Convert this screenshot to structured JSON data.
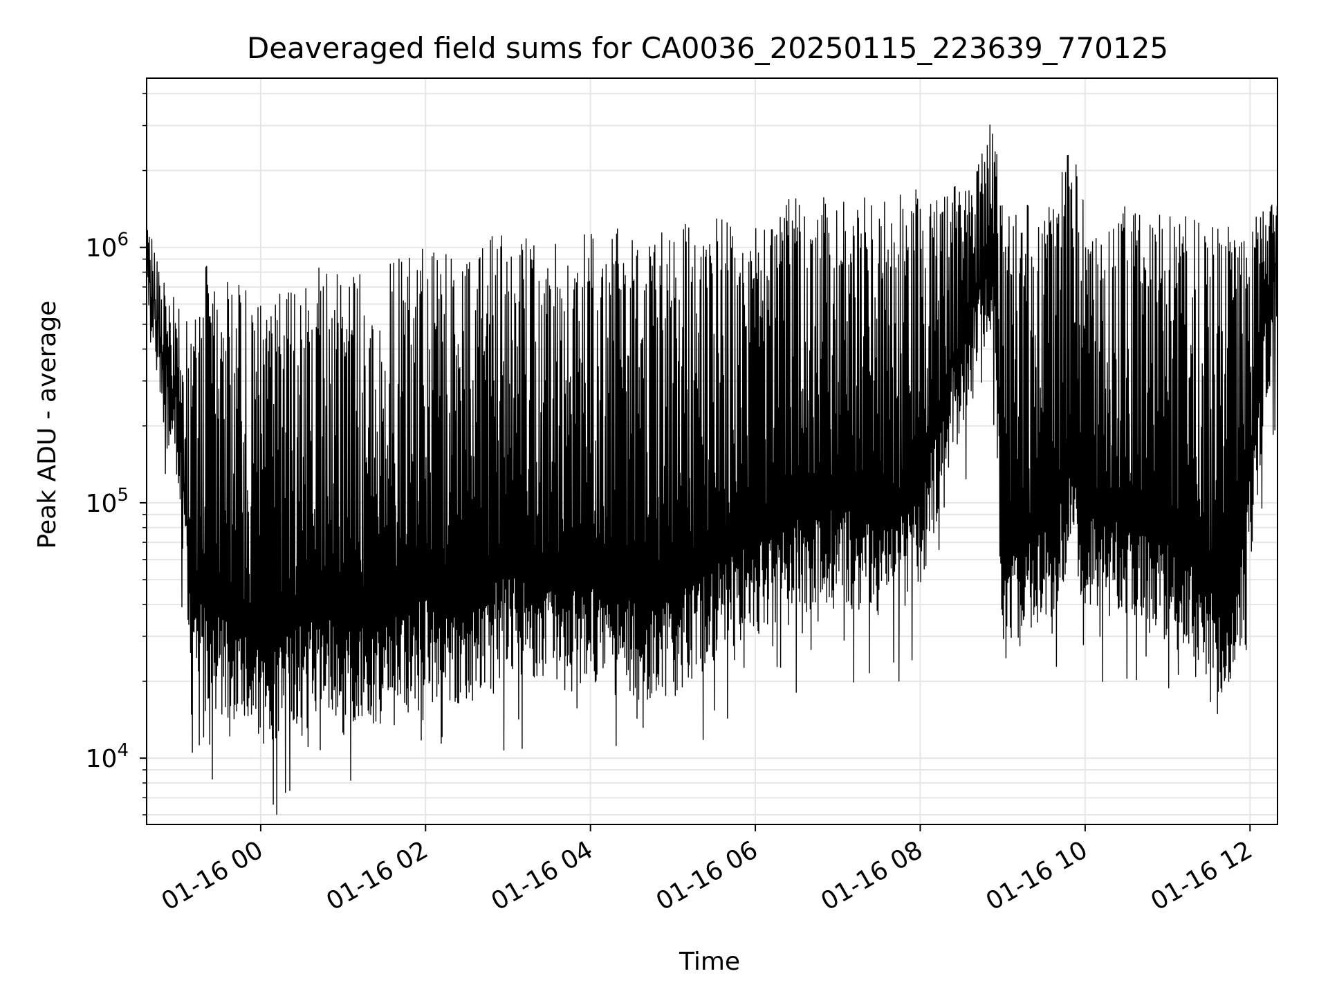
{
  "chart_data": {
    "type": "line",
    "title": "Deaveraged field sums for CA0036_20250115_223639_770125",
    "xlabel": "Time",
    "ylabel": "Peak ADU - average",
    "xlim": [
      "2025-01-15 22:37",
      "2025-01-16 12:20"
    ],
    "ylim": [
      5500,
      4600000
    ],
    "yscale": "log",
    "grid": true,
    "legend": "none",
    "x_ticks": [
      "01-16 00",
      "01-16 02",
      "01-16 04",
      "01-16 06",
      "01-16 08",
      "01-16 10",
      "01-16 12"
    ],
    "x_tick_times": [
      "2025-01-16 00:00",
      "2025-01-16 02:00",
      "2025-01-16 04:00",
      "2025-01-16 06:00",
      "2025-01-16 08:00",
      "2025-01-16 10:00",
      "2025-01-16 12:00"
    ],
    "y_ticks": [
      {
        "value": 10000,
        "base": "10",
        "exp": "4"
      },
      {
        "value": 100000,
        "base": "10",
        "exp": "5"
      },
      {
        "value": 1000000,
        "base": "10",
        "exp": "6"
      }
    ],
    "colors": {
      "line": "#000000",
      "grid": "#e6e6e6",
      "axes": "#000000"
    },
    "series": [
      {
        "x": [
          "2025-01-15 22:37",
          "2025-01-15 22:45",
          "2025-01-15 23:00",
          "2025-01-15 23:10",
          "2025-01-15 23:20",
          "2025-01-15 23:40",
          "2025-01-16 00:00",
          "2025-01-16 00:20",
          "2025-01-16 00:40",
          "2025-01-16 01:00",
          "2025-01-16 01:20",
          "2025-01-16 01:40",
          "2025-01-16 02:00",
          "2025-01-16 02:20",
          "2025-01-16 02:40",
          "2025-01-16 03:00",
          "2025-01-16 03:20",
          "2025-01-16 03:40",
          "2025-01-16 04:00",
          "2025-01-16 04:20",
          "2025-01-16 04:40",
          "2025-01-16 05:00",
          "2025-01-16 05:20",
          "2025-01-16 05:40",
          "2025-01-16 06:00",
          "2025-01-16 06:20",
          "2025-01-16 06:40",
          "2025-01-16 07:00",
          "2025-01-16 07:20",
          "2025-01-16 07:40",
          "2025-01-16 08:00",
          "2025-01-16 08:20",
          "2025-01-16 08:40",
          "2025-01-16 08:53",
          "2025-01-16 09:00",
          "2025-01-16 09:20",
          "2025-01-16 09:40",
          "2025-01-16 09:50",
          "2025-01-16 10:00",
          "2025-01-16 10:20",
          "2025-01-16 10:40",
          "2025-01-16 11:00",
          "2025-01-16 11:20",
          "2025-01-16 11:40",
          "2025-01-16 11:55",
          "2025-01-16 12:10",
          "2025-01-16 12:20"
        ],
        "base": [
          600000,
          400000,
          150000,
          28000,
          25000,
          22000,
          17000,
          20000,
          24000,
          22000,
          21000,
          24000,
          28000,
          25000,
          27000,
          35000,
          30000,
          28000,
          32000,
          27000,
          26000,
          27000,
          33000,
          40000,
          45000,
          50000,
          60000,
          60000,
          60000,
          55000,
          70000,
          200000,
          400000,
          600000,
          45000,
          45000,
          60000,
          90000,
          60000,
          55000,
          50000,
          45000,
          35000,
          25000,
          45000,
          300000,
          700000
        ],
        "peak": [
          1400000,
          900000,
          600000,
          500000,
          900000,
          800000,
          600000,
          700000,
          900000,
          800000,
          800000,
          900000,
          1000000,
          1000000,
          1100000,
          1200000,
          1100000,
          1100000,
          1200000,
          1200000,
          1200000,
          1300000,
          1300000,
          1300000,
          1400000,
          1500000,
          1700000,
          1500000,
          1600000,
          1600000,
          1700000,
          1700000,
          1900000,
          3500000,
          1500000,
          1500000,
          1600000,
          3100000,
          1400000,
          1500000,
          1400000,
          1400000,
          1300000,
          1300000,
          1200000,
          1500000,
          1600000
        ]
      }
    ]
  }
}
